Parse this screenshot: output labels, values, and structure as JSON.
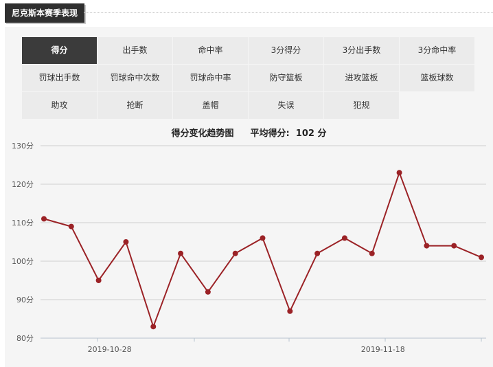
{
  "header": {
    "title": "尼克斯本赛季表现"
  },
  "tabs": [
    {
      "label": "得分",
      "active": true
    },
    {
      "label": "出手数"
    },
    {
      "label": "命中率"
    },
    {
      "label": "3分得分"
    },
    {
      "label": "3分出手数"
    },
    {
      "label": "3分命中率"
    },
    {
      "label": "罚球出手数"
    },
    {
      "label": "罚球命中次数"
    },
    {
      "label": "罚球命中率"
    },
    {
      "label": "防守篮板"
    },
    {
      "label": "进攻篮板"
    },
    {
      "label": "篮板球数"
    },
    {
      "label": "助攻"
    },
    {
      "label": "抢断"
    },
    {
      "label": "盖帽"
    },
    {
      "label": "失误"
    },
    {
      "label": "犯规"
    }
  ],
  "chart_data": {
    "type": "line",
    "title": "得分变化趋势图",
    "subtitle_label": "平均得分:",
    "subtitle_value": "102 分",
    "ylim": [
      80,
      130
    ],
    "yticks": [
      80,
      90,
      100,
      110,
      120,
      130
    ],
    "ytick_suffix": "分",
    "x_date_labels": [
      {
        "label": "2019-10-28",
        "index": 2
      },
      {
        "label": "2019-11-18",
        "index": 12
      }
    ],
    "values": [
      111,
      109,
      95,
      105,
      83,
      102,
      92,
      102,
      106,
      87,
      102,
      106,
      102,
      123,
      104,
      104,
      101
    ],
    "line_color": "#9b2226",
    "grid": true
  }
}
